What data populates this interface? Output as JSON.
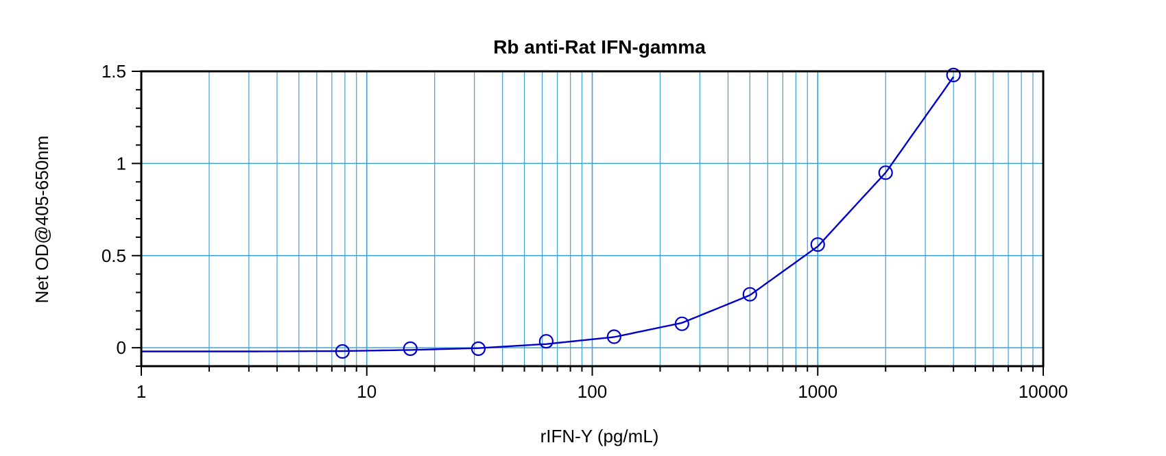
{
  "chart_data": {
    "type": "scatter",
    "title": "Rb anti-Rat IFN-gamma",
    "xlabel": "rIFN-Y (pg/mL)",
    "ylabel": "Net OD@405-650nm",
    "xscale": "log",
    "xlim": [
      1,
      10000
    ],
    "ylim": [
      -0.1,
      1.5
    ],
    "xticks": [
      1,
      10,
      100,
      1000,
      10000
    ],
    "xtick_labels": [
      "1",
      "10",
      "100",
      "1000",
      "10000"
    ],
    "yticks": [
      0,
      0.5,
      1,
      1.5
    ],
    "ytick_labels": [
      "0",
      "0.5",
      "1",
      "1.5"
    ],
    "grid": true,
    "legend": "none",
    "colors": {
      "series": "#0000cc",
      "grid": "#3aa0d8",
      "axes": "#000000"
    },
    "series": [
      {
        "marker": "circle",
        "x": [
          7.8,
          15.6,
          31.25,
          62.5,
          125,
          250,
          500,
          1000,
          2000,
          4000
        ],
        "y": [
          -0.02,
          -0.005,
          -0.005,
          0.035,
          0.06,
          0.13,
          0.29,
          0.56,
          0.95,
          1.48
        ]
      }
    ],
    "fit_curve": {
      "x": [
        1,
        3,
        7.8,
        15.6,
        31.25,
        62.5,
        125,
        250,
        500,
        1000,
        2000,
        4000
      ],
      "y": [
        -0.02,
        -0.02,
        -0.018,
        -0.012,
        -0.002,
        0.02,
        0.058,
        0.135,
        0.285,
        0.55,
        0.95,
        1.47
      ]
    }
  }
}
